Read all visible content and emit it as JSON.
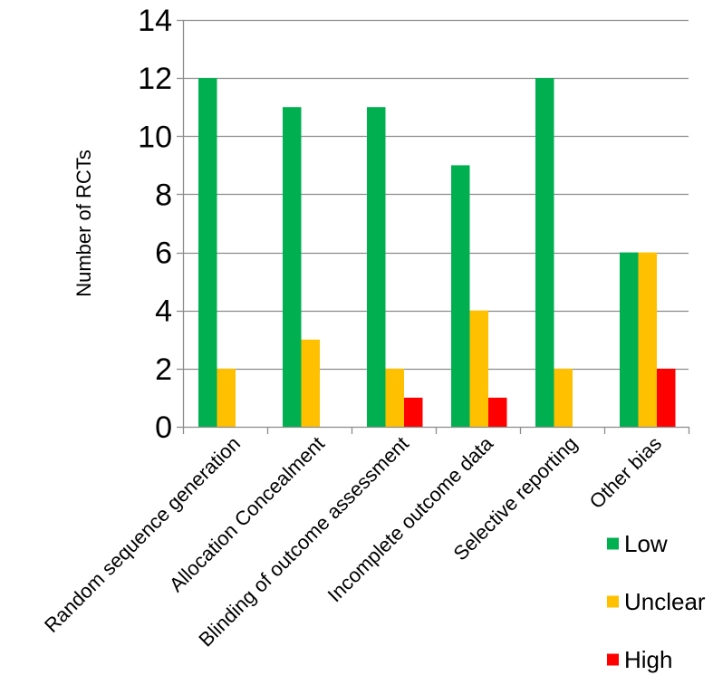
{
  "chart_data": {
    "type": "bar",
    "title": "",
    "xlabel": "",
    "ylabel": "Number of RCTs",
    "ylim": [
      0,
      14
    ],
    "yticks": [
      0,
      2,
      4,
      6,
      8,
      10,
      12,
      14
    ],
    "grid": true,
    "legend_position": "bottom-right",
    "categories": [
      "Random sequence generation",
      "Allocation Concealment",
      "Blinding of outcome assessment",
      "Incomplete outcome data",
      "Selective reporting",
      "Other bias"
    ],
    "series": [
      {
        "name": "Low",
        "color": "#00B050",
        "values": [
          12,
          11,
          11,
          9,
          12,
          6
        ]
      },
      {
        "name": "Unclear",
        "color": "#FFC000",
        "values": [
          2,
          3,
          2,
          4,
          2,
          6
        ]
      },
      {
        "name": "High",
        "color": "#FF0000",
        "values": [
          0,
          0,
          1,
          1,
          0,
          2
        ]
      }
    ]
  }
}
